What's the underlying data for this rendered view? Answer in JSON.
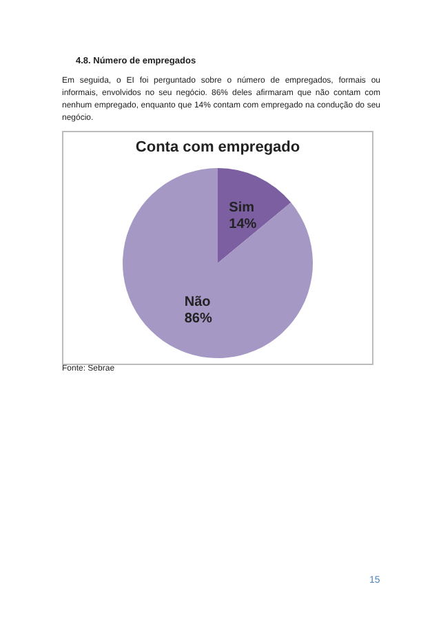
{
  "chart_data": {
    "type": "pie",
    "title": "Conta com empregado",
    "categories": [
      "Sim",
      "Não"
    ],
    "values": [
      14,
      86
    ],
    "colors": [
      "#7b5fa0",
      "#a598c4"
    ],
    "value_labels": [
      "14%",
      "86%"
    ],
    "annotations": [
      "4.8.  Número de empregados",
      "Em seguida, o EI foi perguntado sobre o número de empregados, formais ou informais, envolvidos no seu negócio. 86% deles afirmaram que não contam com nenhum empregado, enquanto que 14% contam com empregado na condução do seu negócio.",
      "Fonte: Sebrae",
      "15"
    ]
  }
}
